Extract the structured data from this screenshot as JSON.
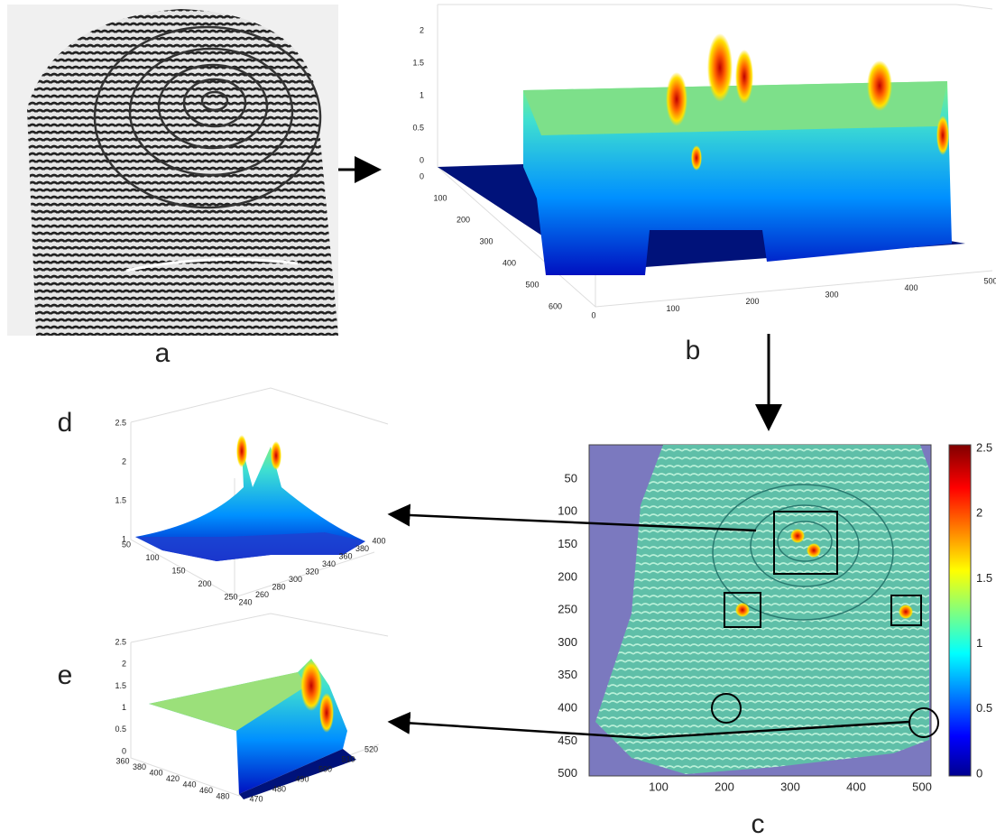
{
  "panels": {
    "a": {
      "label": "a"
    },
    "b": {
      "label": "b",
      "z_ticks": [
        0,
        0.5,
        1,
        1.5,
        2
      ],
      "y_ticks": [
        0,
        100,
        200,
        300,
        400,
        500,
        600
      ],
      "x_ticks": [
        0,
        100,
        200,
        300,
        400,
        500
      ]
    },
    "c": {
      "label": "c",
      "y_ticks": [
        50,
        100,
        150,
        200,
        250,
        300,
        350,
        400,
        450,
        500
      ],
      "x_ticks": [
        100,
        200,
        300,
        400,
        500
      ],
      "colorbar_ticks": [
        0,
        0.5,
        1,
        1.5,
        2,
        2.5
      ]
    },
    "d": {
      "label": "d",
      "z_ticks": [
        1,
        1.5,
        2,
        2.5
      ],
      "x_ticks": [
        50,
        100,
        150,
        200,
        250
      ],
      "y_ticks": [
        240,
        260,
        280,
        300,
        320,
        340,
        360,
        380,
        400
      ]
    },
    "e": {
      "label": "e",
      "z_ticks": [
        0,
        0.5,
        1,
        1.5,
        2,
        2.5
      ],
      "x_ticks": [
        360,
        380,
        400,
        420,
        440,
        460,
        480
      ],
      "y_ticks": [
        470,
        480,
        490,
        500,
        510,
        520
      ]
    }
  }
}
